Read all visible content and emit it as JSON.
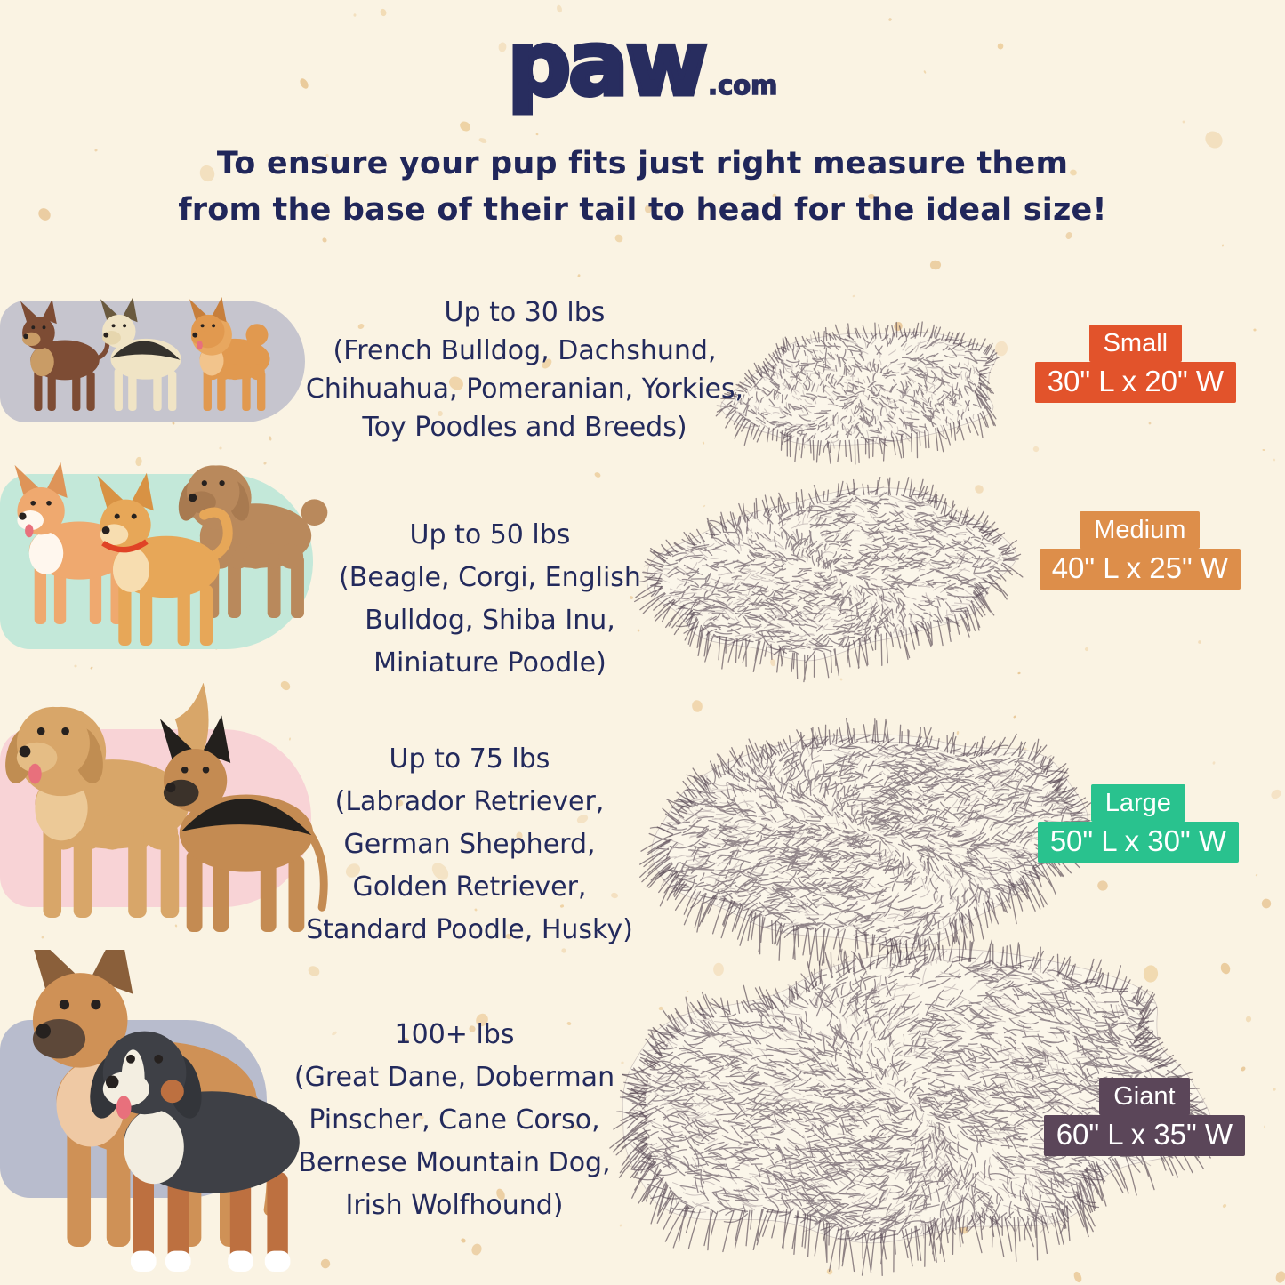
{
  "page": {
    "background": "#faf3e3",
    "text_color": "#232a5c",
    "speckle_colors": [
      "#f2ddba",
      "#eed2a4",
      "#e9c99a"
    ]
  },
  "logo": {
    "brand": "paw",
    "tld": ".com",
    "color": "#282d5f"
  },
  "heading": {
    "line1": "To ensure your pup fits just right measure them",
    "line2": "from the base of their tail to head for the ideal size!"
  },
  "rows": [
    {
      "size_label": "Small",
      "dimensions": "30\" L x 20\" W",
      "label_color": "#e2532b",
      "pill_color": "#c6c5ce",
      "weight": "Up to 30 lbs",
      "breeds_lines": [
        "(French Bulldog, Dachshund,",
        "Chihuahua, Pomeranian, Yorkies,",
        "Toy Poodles and Breeds)"
      ],
      "dogs": [
        "Chihuahua",
        "Yorkshire Terrier",
        "Pomeranian"
      ]
    },
    {
      "size_label": "Medium",
      "dimensions": "40\" L x 25\" W",
      "label_color": "#dd8e4a",
      "pill_color": "#c3e8d9",
      "weight": "Up to 50 lbs",
      "breeds_lines": [
        "(Beagle, Corgi, English",
        "Bulldog, Shiba Inu,",
        "Miniature Poodle)"
      ],
      "dogs": [
        "Corgi",
        "Miniature Poodle",
        "Shiba Inu"
      ]
    },
    {
      "size_label": "Large",
      "dimensions": "50\" L x 30\" W",
      "label_color": "#29c28e",
      "pill_color": "#f8d3d6",
      "weight": "Up to 75 lbs",
      "breeds_lines": [
        "(Labrador Retriever,",
        "German Shepherd,",
        "Golden Retriever,",
        "Standard Poodle, Husky)"
      ],
      "dogs": [
        "Golden Retriever",
        "German Shepherd"
      ]
    },
    {
      "size_label": "Giant",
      "dimensions": "60\" L x 35\" W",
      "label_color": "#5b4659",
      "pill_color": "#b8bccd",
      "weight": "100+ lbs",
      "breeds_lines": [
        "(Great Dane, Doberman",
        "Pinscher, Cane Corso,",
        "Bernese Mountain Dog,",
        "Irish Wolfhound)"
      ],
      "dogs": [
        "Great Dane",
        "Bernese Mountain Dog"
      ]
    }
  ]
}
